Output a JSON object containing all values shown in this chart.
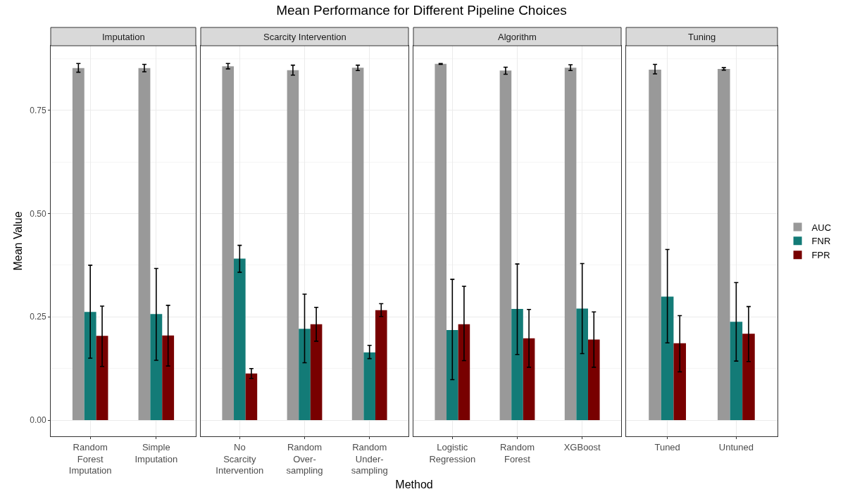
{
  "chart_data": [
    {
      "type": "bar",
      "title": "Imputation",
      "annotations": [
        "Mean Performance for Different Pipeline Choices"
      ],
      "ylabel": "Mean Value",
      "categories": [
        "Random Forest Imputation",
        "Simple Imputation"
      ],
      "series": [
        {
          "color": "#999999",
          "values": [
            0.852,
            0.852
          ],
          "errors": [
            [
              0.842,
              0.863
            ],
            [
              0.843,
              0.861
            ]
          ]
        },
        {
          "color": "#137b77",
          "values": [
            0.262,
            0.257
          ],
          "errors": [
            [
              0.15,
              0.375
            ],
            [
              0.145,
              0.367
            ]
          ]
        },
        {
          "color": "#780000",
          "values": [
            0.204,
            0.205
          ],
          "errors": [
            [
              0.13,
              0.276
            ],
            [
              0.131,
              0.278
            ]
          ]
        }
      ],
      "ylim": [
        -0.039,
        0.906
      ],
      "yticks": [
        {
          "value": 0,
          "label": "0.00"
        },
        {
          "value": 0.25,
          "label": "0.25"
        },
        {
          "value": 0.5,
          "label": "0.50"
        },
        {
          "value": 0.75,
          "label": "0.75"
        }
      ],
      "grid": true
    },
    {
      "type": "bar",
      "title": "Scarcity Intervention",
      "xlabel": "Method",
      "categories": [
        "No Scarcity Intervention",
        "Random Over-sampling",
        "Random Under-sampling"
      ],
      "series": [
        {
          "color": "#999999",
          "values": [
            0.856,
            0.847,
            0.853
          ],
          "errors": [
            [
              0.85,
              0.863
            ],
            [
              0.835,
              0.859
            ],
            [
              0.846,
              0.859
            ]
          ]
        },
        {
          "color": "#137b77",
          "values": [
            0.391,
            0.221,
            0.164
          ],
          "errors": [
            [
              0.358,
              0.423
            ],
            [
              0.139,
              0.305
            ],
            [
              0.149,
              0.181
            ]
          ]
        },
        {
          "color": "#780000",
          "values": [
            0.113,
            0.232,
            0.266
          ],
          "errors": [
            [
              0.101,
              0.125
            ],
            [
              0.191,
              0.273
            ],
            [
              0.251,
              0.282
            ]
          ]
        }
      ],
      "ylim": [
        -0.039,
        0.906
      ],
      "yticks": [
        0,
        0.25,
        0.5,
        0.75
      ],
      "grid": true,
      "tick_labels": "x"
    },
    {
      "type": "bar",
      "title": "Algorithm",
      "categories": [
        "Logistic Regression",
        "Random Forest",
        "XGBoost"
      ],
      "series": [
        {
          "color": "#999999",
          "values": [
            0.862,
            0.846,
            0.853
          ],
          "errors": [
            [
              0.861,
              0.863
            ],
            [
              0.837,
              0.854
            ],
            [
              0.846,
              0.86
            ]
          ]
        },
        {
          "color": "#137b77",
          "values": [
            0.218,
            0.269,
            0.27
          ],
          "errors": [
            [
              0.098,
              0.341
            ],
            [
              0.159,
              0.378
            ],
            [
              0.161,
              0.379
            ]
          ]
        },
        {
          "color": "#780000",
          "values": [
            0.232,
            0.198,
            0.195
          ],
          "errors": [
            [
              0.144,
              0.324
            ],
            [
              0.128,
              0.268
            ],
            [
              0.128,
              0.262
            ]
          ]
        }
      ],
      "ylim": [
        -0.039,
        0.906
      ],
      "yticks": [
        0,
        0.25,
        0.5,
        0.75
      ],
      "grid": true,
      "tick_labels": "x"
    },
    {
      "type": "bar",
      "title": "Tuning",
      "categories": [
        "Tuned",
        "Untuned"
      ],
      "legend": "right",
      "series": [
        {
          "name": "AUC",
          "color": "#999999",
          "values": [
            0.848,
            0.85
          ],
          "errors": [
            [
              0.838,
              0.861
            ],
            [
              0.847,
              0.853
            ]
          ]
        },
        {
          "name": "FNR",
          "color": "#137b77",
          "values": [
            0.299,
            0.238
          ],
          "errors": [
            [
              0.187,
              0.413
            ],
            [
              0.143,
              0.333
            ]
          ]
        },
        {
          "name": "FPR",
          "color": "#780000",
          "values": [
            0.186,
            0.209
          ],
          "errors": [
            [
              0.117,
              0.253
            ],
            [
              0.142,
              0.275
            ]
          ]
        }
      ],
      "ylim": [
        -0.039,
        0.906
      ],
      "yticks": [
        0,
        0.25,
        0.5,
        0.75
      ],
      "grid": true,
      "tick_labels": "x"
    }
  ]
}
